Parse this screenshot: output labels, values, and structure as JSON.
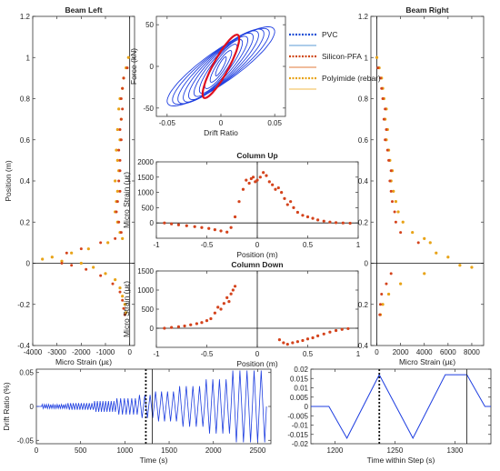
{
  "legend": {
    "items": [
      {
        "label": "PVC",
        "color": "#1f4fd6",
        "style": "dotted"
      },
      {
        "label": "",
        "color": "#5b9bd5",
        "style": "solid"
      },
      {
        "label": "Silicon-PFA",
        "color": "#d04a1a",
        "style": "dotted"
      },
      {
        "label": "",
        "color": "#e07a3a",
        "style": "solid"
      },
      {
        "label": "Polyimide (rebar)",
        "color": "#e8a317",
        "style": "dotted"
      },
      {
        "label": "",
        "color": "#f0b84a",
        "style": "solid"
      }
    ]
  },
  "colors": {
    "pvc": "#1f3fe0",
    "silicon": "#d4431c",
    "polyimide": "#e8a317",
    "hysteresis_red": "#e0101f"
  },
  "chart_data": [
    {
      "id": "beam_left",
      "type": "scatter",
      "title": "Beam Left",
      "xlabel": "Micro Strain (με)",
      "ylabel": "Position (m)",
      "xlim": [
        -4000,
        200
      ],
      "ylim": [
        -0.4,
        1.2
      ],
      "xticks": [
        -4000,
        -3000,
        -2000,
        -1000,
        0
      ],
      "yticks": [
        -0.4,
        -0.2,
        0,
        0.2,
        0.4,
        0.6,
        0.8,
        1,
        1.2
      ],
      "series": [
        {
          "name": "Polyimide (rebar)",
          "points": [
            [
              -50,
              1.0
            ],
            [
              -150,
              0.95
            ],
            [
              -250,
              0.9
            ],
            [
              -300,
              0.85
            ],
            [
              -400,
              0.8
            ],
            [
              -450,
              0.75
            ],
            [
              -350,
              0.7
            ],
            [
              -500,
              0.65
            ],
            [
              -400,
              0.6
            ],
            [
              -550,
              0.55
            ],
            [
              -500,
              0.5
            ],
            [
              -450,
              0.45
            ],
            [
              -600,
              0.4
            ],
            [
              -500,
              0.35
            ],
            [
              -550,
              0.3
            ],
            [
              -600,
              0.25
            ],
            [
              -500,
              0.2
            ],
            [
              -400,
              0.15
            ],
            [
              -300,
              0.12
            ],
            [
              -900,
              0.1
            ],
            [
              -1700,
              0.07
            ],
            [
              -2400,
              0.05
            ],
            [
              -3200,
              0.03
            ],
            [
              -3600,
              0.02
            ],
            [
              -2800,
              0.01
            ],
            [
              -2000,
              0.0
            ],
            [
              -1500,
              -0.02
            ],
            [
              -1000,
              -0.05
            ],
            [
              -600,
              -0.08
            ],
            [
              -400,
              -0.12
            ],
            [
              -300,
              -0.16
            ],
            [
              -200,
              -0.2
            ],
            [
              -150,
              -0.24
            ]
          ]
        },
        {
          "name": "Silicon-PFA",
          "points": [
            [
              -100,
              0.95
            ],
            [
              -250,
              0.9
            ],
            [
              -300,
              0.85
            ],
            [
              -350,
              0.8
            ],
            [
              -300,
              0.75
            ],
            [
              -350,
              0.7
            ],
            [
              -400,
              0.65
            ],
            [
              -350,
              0.6
            ],
            [
              -450,
              0.55
            ],
            [
              -400,
              0.5
            ],
            [
              -400,
              0.45
            ],
            [
              -450,
              0.4
            ],
            [
              -400,
              0.35
            ],
            [
              -500,
              0.3
            ],
            [
              -550,
              0.25
            ],
            [
              -450,
              0.2
            ],
            [
              -350,
              0.15
            ],
            [
              -600,
              0.12
            ],
            [
              -1200,
              0.1
            ],
            [
              -2000,
              0.07
            ],
            [
              -2600,
              0.05
            ],
            [
              -2800,
              0.0
            ],
            [
              -2400,
              -0.01
            ],
            [
              -1800,
              -0.03
            ],
            [
              -1200,
              -0.06
            ],
            [
              -700,
              -0.1
            ],
            [
              -400,
              -0.14
            ],
            [
              -300,
              -0.18
            ],
            [
              -250,
              -0.22
            ],
            [
              -200,
              -0.25
            ]
          ]
        }
      ]
    },
    {
      "id": "hysteresis",
      "type": "line",
      "xlabel": "Drift Ratio",
      "ylabel": "Force (kN)",
      "xlim": [
        -0.06,
        0.06
      ],
      "ylim": [
        -60,
        60
      ],
      "xticks": [
        -0.05,
        0,
        0.05
      ],
      "xtick_labels": [
        "-0.05",
        "0",
        "0.05"
      ],
      "yticks": [
        -50,
        0,
        50
      ],
      "series": [
        {
          "name": "loops",
          "amplitudes": [
            0.005,
            0.01,
            0.015,
            0.02,
            0.025,
            0.03,
            0.035,
            0.04,
            0.045,
            0.05
          ],
          "force_peaks": [
            12,
            20,
            28,
            34,
            38,
            42,
            45,
            47,
            48,
            50
          ]
        },
        {
          "name": "current_cycle",
          "amplitudes": [
            0.017
          ],
          "force_peaks": [
            40
          ]
        }
      ]
    },
    {
      "id": "column_up",
      "type": "line",
      "title": "Column Up",
      "xlabel": "Position (m)",
      "ylabel": "Micro Strain (με)",
      "xlim": [
        -1,
        1
      ],
      "ylim": [
        -500,
        2000
      ],
      "xticks": [
        -1,
        -0.5,
        0,
        0.5,
        1
      ],
      "yticks": [
        0,
        500,
        1000,
        1500,
        2000
      ],
      "series": [
        {
          "name": "Silicon-PFA",
          "x": [
            -0.92,
            -0.85,
            -0.78,
            -0.7,
            -0.62,
            -0.55,
            -0.48,
            -0.42,
            -0.36,
            -0.3,
            -0.26,
            -0.22,
            -0.18,
            -0.14,
            -0.11,
            -0.08,
            -0.06,
            -0.04,
            -0.02,
            0.0,
            0.03,
            0.06,
            0.09,
            0.12,
            0.15,
            0.18,
            0.21,
            0.24,
            0.27,
            0.3,
            0.33,
            0.36,
            0.4,
            0.45,
            0.5,
            0.55,
            0.6,
            0.66,
            0.72,
            0.78,
            0.85,
            0.92
          ],
          "y": [
            0,
            -30,
            -60,
            -90,
            -120,
            -150,
            -180,
            -220,
            -260,
            -300,
            -150,
            200,
            700,
            1100,
            1400,
            1300,
            1450,
            1500,
            1350,
            1400,
            1500,
            1650,
            1550,
            1350,
            1250,
            1100,
            1150,
            1000,
            800,
            600,
            700,
            500,
            350,
            250,
            200,
            150,
            100,
            60,
            30,
            10,
            0,
            -10
          ]
        }
      ]
    },
    {
      "id": "column_down",
      "type": "line",
      "title": "Column Down",
      "xlabel": "Position (m)",
      "ylabel": "Micro Strain (με)",
      "xlim": [
        -1,
        1
      ],
      "ylim": [
        -500,
        1500
      ],
      "xticks": [
        -1,
        -0.5,
        0,
        0.5,
        1
      ],
      "yticks": [
        0,
        500,
        1000,
        1500
      ],
      "series": [
        {
          "name": "Silicon-PFA left",
          "x": [
            -0.92,
            -0.85,
            -0.78,
            -0.72,
            -0.66,
            -0.6,
            -0.55,
            -0.5,
            -0.46,
            -0.42,
            -0.39,
            -0.36,
            -0.33,
            -0.3,
            -0.28,
            -0.26,
            -0.24,
            -0.22
          ],
          "y": [
            0,
            20,
            40,
            60,
            90,
            120,
            150,
            200,
            250,
            400,
            550,
            500,
            650,
            800,
            700,
            900,
            1000,
            1100
          ]
        },
        {
          "name": "Silicon-PFA right",
          "x": [
            0.22,
            0.26,
            0.3,
            0.35,
            0.4,
            0.45,
            0.5,
            0.55,
            0.6,
            0.66,
            0.72,
            0.78,
            0.84,
            0.9
          ],
          "y": [
            -300,
            -380,
            -420,
            -380,
            -350,
            -320,
            -280,
            -250,
            -200,
            -150,
            -100,
            -60,
            -30,
            -10
          ]
        }
      ]
    },
    {
      "id": "beam_right",
      "type": "scatter",
      "title": "Beam Right",
      "xlabel": "Micro Strain (με)",
      "ylabel": "",
      "xlim": [
        -500,
        9000
      ],
      "ylim": [
        -0.4,
        1.2
      ],
      "xticks": [
        0,
        2000,
        4000,
        6000,
        8000
      ],
      "yticks": [
        -0.4,
        -0.2,
        0,
        0.2,
        0.4,
        0.6,
        0.8,
        1,
        1.2
      ],
      "series": [
        {
          "name": "Polyimide (rebar)",
          "points": [
            [
              0,
              1.0
            ],
            [
              200,
              0.95
            ],
            [
              400,
              0.9
            ],
            [
              500,
              0.85
            ],
            [
              600,
              0.8
            ],
            [
              800,
              0.75
            ],
            [
              700,
              0.7
            ],
            [
              900,
              0.65
            ],
            [
              800,
              0.6
            ],
            [
              1000,
              0.55
            ],
            [
              1100,
              0.5
            ],
            [
              1300,
              0.45
            ],
            [
              1200,
              0.4
            ],
            [
              1400,
              0.35
            ],
            [
              1600,
              0.3
            ],
            [
              1800,
              0.25
            ],
            [
              2200,
              0.2
            ],
            [
              3000,
              0.15
            ],
            [
              4000,
              0.12
            ],
            [
              4500,
              0.1
            ],
            [
              5000,
              0.05
            ],
            [
              6000,
              0.03
            ],
            [
              7000,
              -0.01
            ],
            [
              8000,
              -0.02
            ],
            [
              4000,
              -0.05
            ],
            [
              2000,
              -0.1
            ],
            [
              1000,
              -0.15
            ],
            [
              500,
              -0.2
            ],
            [
              300,
              -0.25
            ]
          ]
        },
        {
          "name": "Silicon-PFA",
          "points": [
            [
              100,
              0.95
            ],
            [
              300,
              0.9
            ],
            [
              400,
              0.85
            ],
            [
              500,
              0.8
            ],
            [
              700,
              0.75
            ],
            [
              600,
              0.7
            ],
            [
              800,
              0.65
            ],
            [
              700,
              0.6
            ],
            [
              900,
              0.55
            ],
            [
              1000,
              0.5
            ],
            [
              1200,
              0.45
            ],
            [
              1100,
              0.4
            ],
            [
              1200,
              0.35
            ],
            [
              1300,
              0.3
            ],
            [
              1500,
              0.25
            ],
            [
              1600,
              0.2
            ],
            [
              2000,
              0.15
            ],
            [
              3500,
              0.1
            ],
            [
              1200,
              -0.05
            ],
            [
              800,
              -0.1
            ],
            [
              400,
              -0.15
            ],
            [
              300,
              -0.2
            ],
            [
              250,
              -0.25
            ]
          ]
        }
      ]
    },
    {
      "id": "drift_history",
      "type": "line",
      "xlabel": "Time (s)",
      "ylabel": "Drift Ratio (%)",
      "xlim": [
        0,
        2650
      ],
      "ylim": [
        -0.055,
        0.055
      ],
      "xticks": [
        0,
        500,
        1000,
        1500,
        2000,
        2500
      ],
      "yticks": [
        -0.05,
        0,
        0.05
      ],
      "ytick_labels": [
        "-0.05",
        "0",
        "0.05"
      ],
      "markers": {
        "dotted_at": 1237,
        "solid_at": 1310
      },
      "series": [
        {
          "name": "PVC",
          "segments": [
            {
              "t0": 60,
              "t1": 350,
              "amp": 0.003,
              "cycles": 12
            },
            {
              "t0": 350,
              "t1": 650,
              "amp": 0.005,
              "cycles": 10
            },
            {
              "t0": 650,
              "t1": 900,
              "amp": 0.008,
              "cycles": 8
            },
            {
              "t0": 900,
              "t1": 1150,
              "amp": 0.012,
              "cycles": 6
            },
            {
              "t0": 1150,
              "t1": 1330,
              "amp": 0.017,
              "cycles": 3
            },
            {
              "t0": 1330,
              "t1": 1600,
              "amp": 0.022,
              "cycles": 4
            },
            {
              "t0": 1600,
              "t1": 1900,
              "amp": 0.03,
              "cycles": 4
            },
            {
              "t0": 1900,
              "t1": 2200,
              "amp": 0.04,
              "cycles": 4
            },
            {
              "t0": 2200,
              "t1": 2600,
              "amp": 0.053,
              "cycles": 5
            }
          ]
        }
      ]
    },
    {
      "id": "step_detail",
      "type": "line",
      "xlabel": "Time within Step (s)",
      "ylabel": "",
      "xlim": [
        1180,
        1330
      ],
      "ylim": [
        -0.02,
        0.02
      ],
      "xticks": [
        1200,
        1250,
        1300
      ],
      "yticks": [
        -0.02,
        -0.015,
        -0.01,
        -0.005,
        0,
        0.005,
        0.01,
        0.015,
        0.02
      ],
      "ytick_labels": [
        "-0.02",
        "-0.015",
        "-0.01",
        "-0.005",
        "0",
        "0.005",
        "0.01",
        "0.015",
        "0.02"
      ],
      "markers": {
        "dotted_at": 1237,
        "solid_at": 1310
      },
      "series": [
        {
          "name": "PVC",
          "x": [
            1180,
            1195,
            1210,
            1237,
            1265,
            1292,
            1310,
            1325,
            1330
          ],
          "y": [
            0,
            0,
            -0.017,
            0.017,
            -0.017,
            0.017,
            0.017,
            0,
            0
          ]
        }
      ]
    }
  ]
}
